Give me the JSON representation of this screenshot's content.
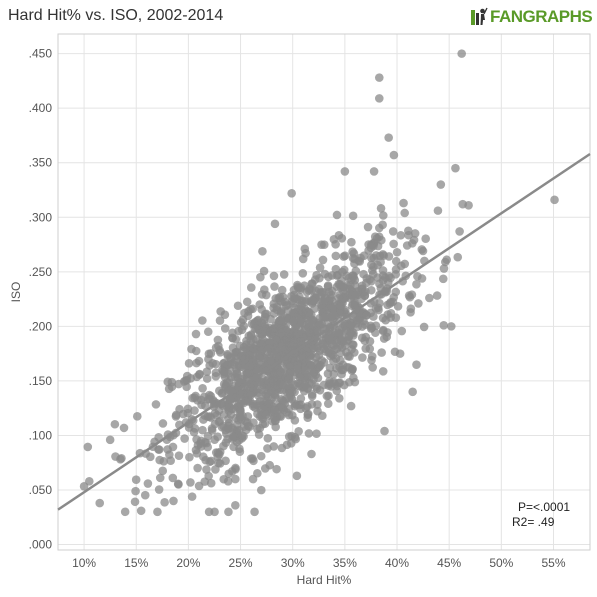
{
  "title": "Hard Hit% vs. ISO, 2002-2014",
  "brand": {
    "logo_text": "FANGRAPHS",
    "logo_icon": "fangraphs-batter-icon",
    "color": "#5a9a28"
  },
  "stats": {
    "p_value": "P=<.0001",
    "r2": "R2=  .49"
  },
  "colors": {
    "point": "#8a8a8a",
    "trend": "#8a8a8a",
    "grid": "#e4e4e4",
    "axis_text": "#555555"
  },
  "chart_data": {
    "type": "scatter",
    "title": "Hard Hit% vs. ISO, 2002-2014",
    "xlabel": "Hard Hit%",
    "ylabel": "ISO",
    "xlim": [
      0.075,
      0.585
    ],
    "ylim": [
      -0.005,
      0.468
    ],
    "x_ticks": [
      0.1,
      0.15,
      0.2,
      0.25,
      0.3,
      0.35,
      0.4,
      0.45,
      0.5,
      0.55
    ],
    "x_tick_labels": [
      "10%",
      "15%",
      "20%",
      "25%",
      "30%",
      "35%",
      "40%",
      "45%",
      "50%",
      "55%"
    ],
    "y_ticks": [
      0.0,
      0.05,
      0.1,
      0.15,
      0.2,
      0.25,
      0.3,
      0.35,
      0.4,
      0.45
    ],
    "y_tick_labels": [
      ".000",
      ".050",
      ".100",
      ".150",
      ".200",
      ".250",
      ".300",
      ".350",
      ".400",
      ".450"
    ],
    "grid": true,
    "trend_line": {
      "x": [
        0.075,
        0.585
      ],
      "y": [
        0.032,
        0.358
      ]
    },
    "notable_points": [
      {
        "x": 0.462,
        "y": 0.45
      },
      {
        "x": 0.383,
        "y": 0.428
      },
      {
        "x": 0.383,
        "y": 0.409
      },
      {
        "x": 0.551,
        "y": 0.316
      },
      {
        "x": 0.392,
        "y": 0.373
      },
      {
        "x": 0.397,
        "y": 0.357
      },
      {
        "x": 0.378,
        "y": 0.342
      },
      {
        "x": 0.35,
        "y": 0.342
      },
      {
        "x": 0.456,
        "y": 0.345
      },
      {
        "x": 0.463,
        "y": 0.312
      },
      {
        "x": 0.442,
        "y": 0.33
      },
      {
        "x": 0.46,
        "y": 0.287
      },
      {
        "x": 0.445,
        "y": 0.253
      },
      {
        "x": 0.452,
        "y": 0.2
      },
      {
        "x": 0.431,
        "y": 0.226
      },
      {
        "x": 0.415,
        "y": 0.14
      },
      {
        "x": 0.403,
        "y": 0.175
      },
      {
        "x": 0.388,
        "y": 0.104
      },
      {
        "x": 0.299,
        "y": 0.322
      },
      {
        "x": 0.283,
        "y": 0.294
      },
      {
        "x": 0.245,
        "y": 0.036
      },
      {
        "x": 0.115,
        "y": 0.038
      },
      {
        "x": 0.105,
        "y": 0.058
      },
      {
        "x": 0.125,
        "y": 0.096
      },
      {
        "x": 0.245,
        "y": 0.06
      },
      {
        "x": 0.262,
        "y": 0.06
      },
      {
        "x": 0.304,
        "y": 0.063
      },
      {
        "x": 0.318,
        "y": 0.083
      },
      {
        "x": 0.375,
        "y": 0.272
      },
      {
        "x": 0.38,
        "y": 0.265
      }
    ],
    "cloud": {
      "count": 1500,
      "x_mean": 0.295,
      "x_sd": 0.055,
      "slope": 0.64,
      "intercept": -0.016,
      "resid_sd": 0.034
    }
  }
}
